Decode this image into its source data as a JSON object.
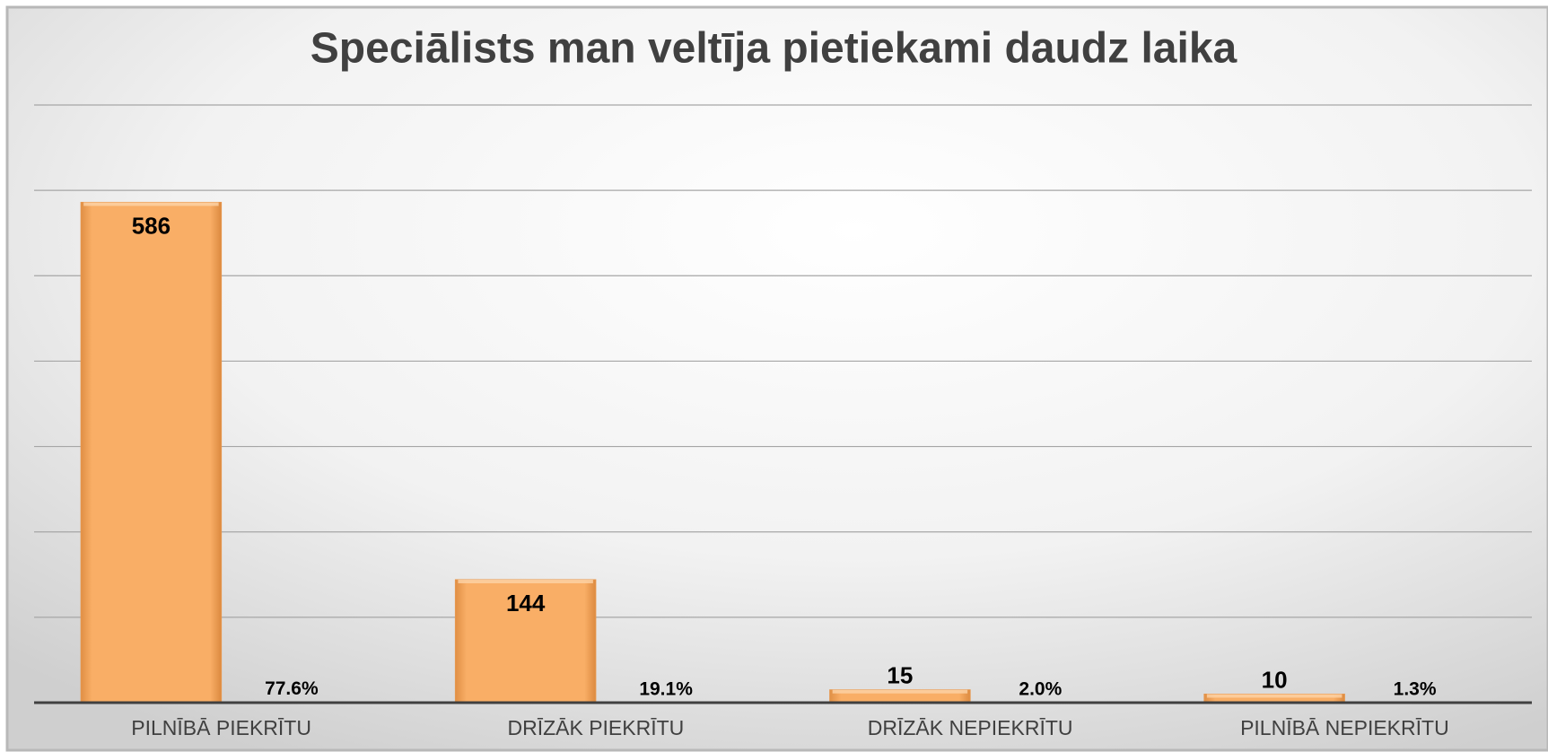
{
  "chart_data": {
    "type": "bar",
    "title": "Speciālists man veltīja pietiekami daudz laika",
    "categories": [
      "PILNĪBĀ PIEKRĪTU",
      "DRĪZĀK PIEKRĪTU",
      "DRĪZĀK NEPIEKRĪTU",
      "PILNĪBĀ NEPIEKRĪTU"
    ],
    "series": [
      {
        "color": "#f7a95f",
        "values": [
          586,
          144,
          15,
          10
        ]
      },
      {
        "color": "#f7a95f",
        "values": [
          0.776,
          0.191,
          0.02,
          0.013
        ],
        "value_labels": [
          "77.6%",
          "19.1%",
          "2.0%",
          "1.3%"
        ]
      }
    ],
    "ylim": [
      0,
      700
    ],
    "yticks": [
      0,
      100,
      200,
      300,
      400,
      500,
      600,
      700
    ],
    "grid": true
  }
}
